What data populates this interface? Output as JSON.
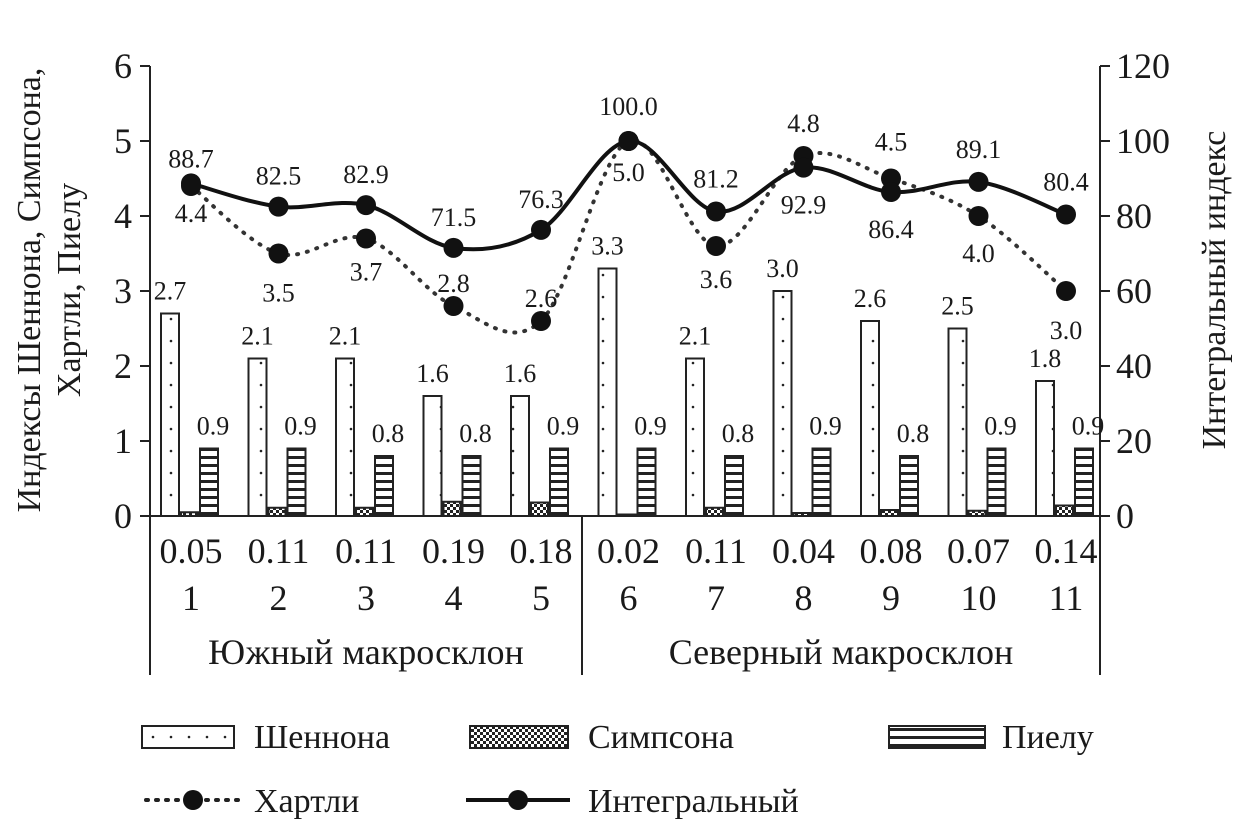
{
  "chart_data": {
    "type": "bar",
    "categories": [
      "1",
      "2",
      "3",
      "4",
      "5",
      "6",
      "7",
      "8",
      "9",
      "10",
      "11"
    ],
    "groups": [
      {
        "label": "Южный макросклон",
        "categories": [
          "1",
          "2",
          "3",
          "4",
          "5"
        ]
      },
      {
        "label": "Северный макросклон",
        "categories": [
          "6",
          "7",
          "8",
          "9",
          "10",
          "11"
        ]
      }
    ],
    "ylabel": "Индексы Шеннона, Симпсона, Хартли, Пиелу",
    "ylabel_lines": [
      "Индексы Шеннона, Симпсона,",
      "Хартли, Пиелу"
    ],
    "y2label": "Интегральный индекс",
    "ylim": [
      0,
      6
    ],
    "y2lim": [
      0,
      120
    ],
    "yticks": [
      "0",
      "1",
      "2",
      "3",
      "4",
      "5",
      "6"
    ],
    "y2ticks": [
      "0",
      "20",
      "40",
      "60",
      "80",
      "100",
      "120"
    ],
    "grid": false,
    "legend": "bottom",
    "series": [
      {
        "name": "Шеннона",
        "type": "bar",
        "axis": "left",
        "pattern": "dots",
        "values": [
          2.7,
          2.1,
          2.1,
          1.6,
          1.6,
          3.3,
          2.1,
          3.0,
          2.6,
          2.5,
          1.8
        ],
        "labels": [
          "2.7",
          "2.1",
          "2.1",
          "1.6",
          "1.6",
          "3.3",
          "2.1",
          "3.0",
          "2.6",
          "2.5",
          "1.8"
        ]
      },
      {
        "name": "Симпсона",
        "type": "bar",
        "axis": "left",
        "pattern": "checker",
        "values": [
          0.05,
          0.11,
          0.11,
          0.19,
          0.18,
          0.02,
          0.11,
          0.04,
          0.08,
          0.07,
          0.14
        ],
        "labels": [
          "0.05",
          "0.11",
          "0.11",
          "0.19",
          "0.18",
          "0.02",
          "0.11",
          "0.04",
          "0.08",
          "0.07",
          "0.14"
        ]
      },
      {
        "name": "Пиелу",
        "type": "bar",
        "axis": "left",
        "pattern": "horizontal-stripes",
        "values": [
          0.9,
          0.9,
          0.8,
          0.8,
          0.9,
          0.9,
          0.8,
          0.9,
          0.8,
          0.9,
          0.9
        ],
        "labels": [
          "0.9",
          "0.9",
          "0.8",
          "0.8",
          "0.9",
          "0.9",
          "0.8",
          "0.9",
          "0.8",
          "0.9",
          "0.9"
        ]
      },
      {
        "name": "Хартли",
        "type": "line",
        "axis": "left",
        "style": "dotted",
        "values": [
          4.4,
          3.5,
          3.7,
          2.8,
          2.6,
          5.0,
          3.6,
          4.8,
          4.5,
          4.0,
          3.0
        ],
        "labels": [
          "4.4",
          "3.5",
          "3.7",
          "2.8",
          "2.6",
          "5.0",
          "3.6",
          "4.8",
          "4.5",
          "4.0",
          "3.0"
        ]
      },
      {
        "name": "Интегральный",
        "type": "line",
        "axis": "right",
        "style": "solid",
        "values": [
          88.7,
          82.5,
          82.9,
          71.5,
          76.3,
          100.0,
          81.2,
          92.9,
          86.4,
          89.1,
          80.4
        ],
        "labels": [
          "88.7",
          "82.5",
          "82.9",
          "71.5",
          "76.3",
          "100.0",
          "81.2",
          "92.9",
          "86.4",
          "89.1",
          "80.4"
        ]
      }
    ],
    "colors": {
      "ink": "#1a1a1a",
      "background": "#ffffff"
    }
  }
}
